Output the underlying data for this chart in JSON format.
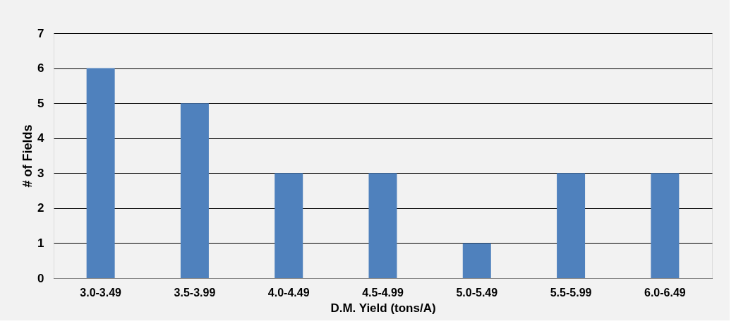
{
  "chart_data": {
    "type": "bar",
    "xlabel": "D.M. Yield (tons/A)",
    "ylabel": "# of Fields",
    "categories": [
      "3.0-3.49",
      "3.5-3.99",
      "4.0-4.49",
      "4.5-4.99",
      "5.0-5.49",
      "5.5-5.99",
      "6.0-6.49"
    ],
    "values": [
      6,
      5,
      3,
      3,
      1,
      3,
      3
    ],
    "color": "#4f81bd",
    "ylim": [
      0,
      7
    ],
    "yticks": [
      0,
      1,
      2,
      3,
      4,
      5,
      6,
      7
    ],
    "grid": "y"
  }
}
